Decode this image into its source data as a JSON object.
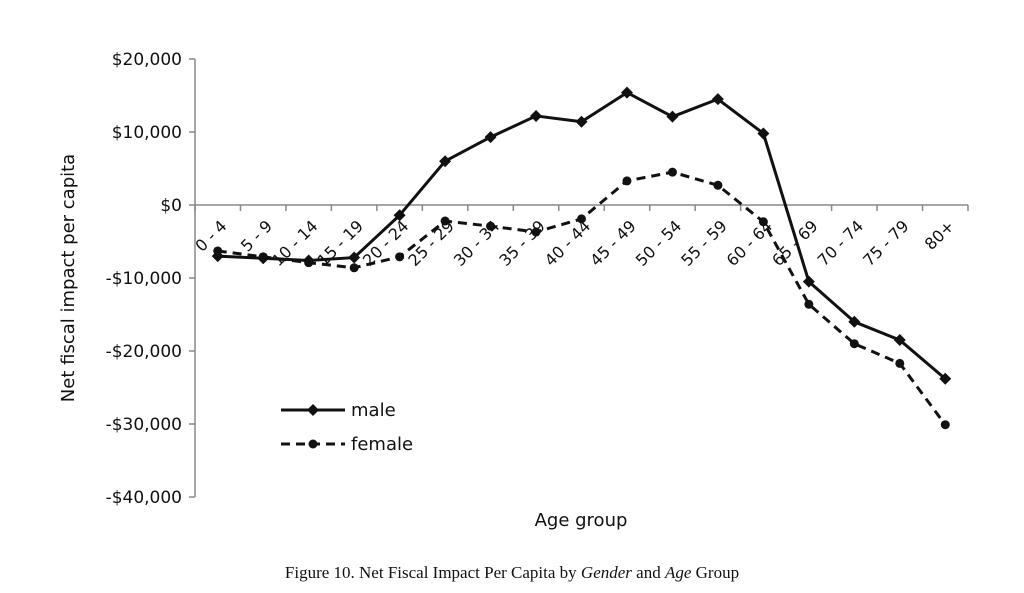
{
  "chart_data": {
    "type": "line",
    "title": "",
    "xlabel": "Age group",
    "ylabel": "Net fiscal impact per capita",
    "ylim": [
      -40000,
      20000
    ],
    "yticks": [
      20000,
      10000,
      0,
      -10000,
      -20000,
      -30000,
      -40000
    ],
    "ytick_labels": [
      "$20,000",
      "$10,000",
      "$0",
      "-$10,000",
      "-$20,000",
      "-$30,000",
      "-$40,000"
    ],
    "categories": [
      "0 - 4",
      "5 - 9",
      "10 - 14",
      "15 - 19",
      "20 - 24",
      "25 - 29",
      "30 - 34",
      "35 - 39",
      "40 - 44",
      "45 - 49",
      "50 - 54",
      "55 - 59",
      "60 - 64",
      "65 - 69",
      "70 - 74",
      "75 - 79",
      "80+"
    ],
    "series": [
      {
        "name": "male",
        "style": "solid",
        "marker": "diamond",
        "color": "#111111",
        "values": [
          -7000,
          -7300,
          -7600,
          -7200,
          -1400,
          6000,
          9300,
          12200,
          11400,
          15400,
          12100,
          14500,
          9800,
          -10500,
          -16000,
          -18500,
          -23800
        ]
      },
      {
        "name": "female",
        "style": "dashed",
        "marker": "circle",
        "color": "#111111",
        "values": [
          -6300,
          -7100,
          -7900,
          -8600,
          -7100,
          -2200,
          -2900,
          -3700,
          -1900,
          3300,
          4500,
          2700,
          -2300,
          -13600,
          -19000,
          -21700,
          -30100
        ]
      }
    ],
    "legend_position": "bottom-left",
    "grid": false
  },
  "caption": {
    "prefix": "Figure 10.  Net Fiscal Impact Per Capita by ",
    "em1": "Gender",
    "mid": " and ",
    "em2": "Age",
    "suffix": " Group"
  }
}
